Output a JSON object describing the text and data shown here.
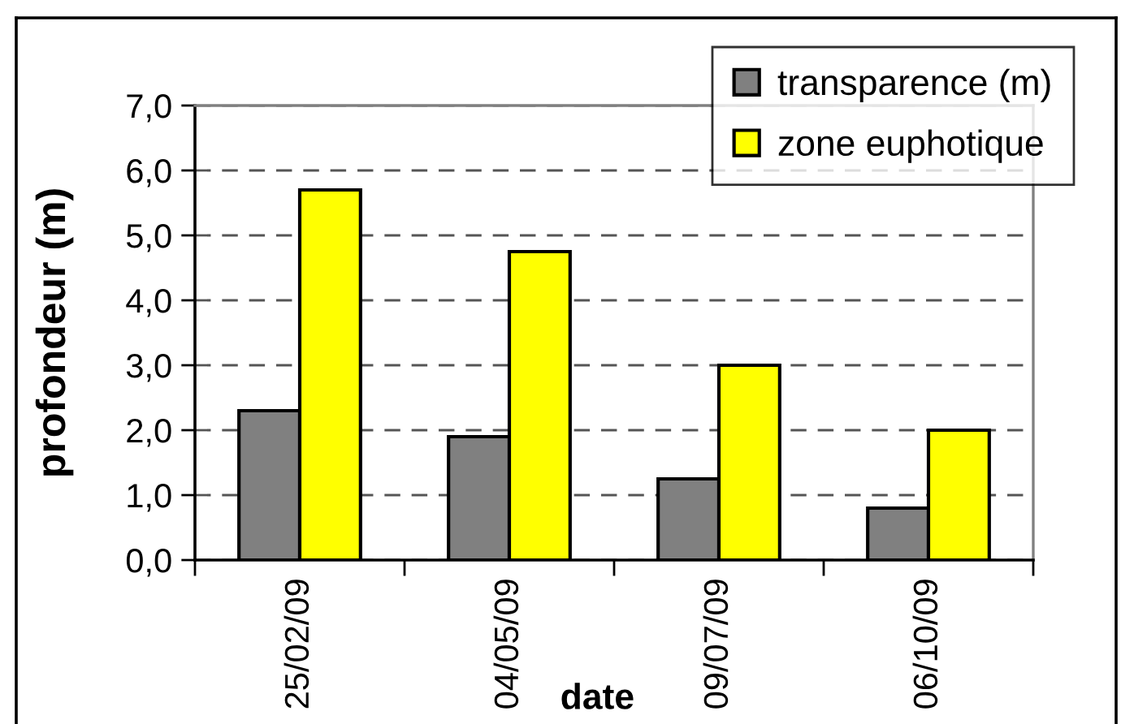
{
  "chart_data": {
    "type": "bar",
    "xlabel": "date",
    "ylabel": "profondeur (m)",
    "categories": [
      "25/02/09",
      "04/05/09",
      "09/07/09",
      "06/10/09"
    ],
    "series": [
      {
        "name": "transparence (m)",
        "color": "#808080",
        "values": [
          2.3,
          1.9,
          1.25,
          0.8
        ]
      },
      {
        "name": "zone euphotique",
        "color": "#ffff00",
        "values": [
          5.7,
          4.75,
          3.0,
          2.0
        ]
      }
    ],
    "ylim": [
      0,
      7
    ],
    "yticks": [
      {
        "value": 0,
        "label": "0,0"
      },
      {
        "value": 1,
        "label": "1,0"
      },
      {
        "value": 2,
        "label": "2,0"
      },
      {
        "value": 3,
        "label": "3,0"
      },
      {
        "value": 4,
        "label": "4,0"
      },
      {
        "value": 5,
        "label": "5,0"
      },
      {
        "value": 6,
        "label": "6,0"
      },
      {
        "value": 7,
        "label": "7,0"
      }
    ],
    "grid": "y",
    "legend": "top right"
  }
}
